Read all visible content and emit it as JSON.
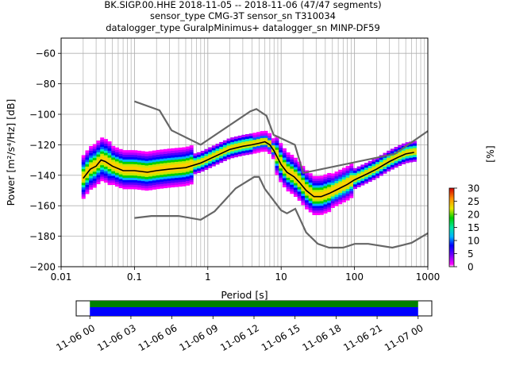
{
  "title_lines": [
    "BK.SIGP.00.HHE   2018-11-05 -- 2018-11-06  (47/47 segments)",
    "sensor_type CMG-3T sensor_sn T310034",
    "datalogger_type GuralpMinimus+ datalogger_sn MINP-DF59"
  ],
  "chart_data": [
    {
      "type": "heatmap",
      "title": "BK.SIGP.00.HHE   2018-11-05 -- 2018-11-06  (47/47 segments)",
      "xlabel": "Period [s]",
      "ylabel": "Power [m²/s⁴/Hz] [dB]",
      "xscale": "log",
      "xlim": [
        0.01,
        1000
      ],
      "ylim": [
        -200,
        -50
      ],
      "xticks": [
        0.01,
        0.1,
        1,
        10,
        100,
        1000
      ],
      "xtick_labels": [
        "0.01",
        "0.1",
        "1",
        "10",
        "100",
        "1000"
      ],
      "yticks": [
        -60,
        -80,
        -100,
        -120,
        -140,
        -160,
        -180,
        -200
      ],
      "ytick_labels": [
        "−60",
        "−80",
        "−100",
        "−120",
        "−140",
        "−160",
        "−180",
        "−200"
      ],
      "grid": true,
      "colorbar": {
        "label": "[%]",
        "range": [
          0,
          30
        ],
        "ticks": [
          0,
          5,
          10,
          15,
          20,
          25,
          30
        ],
        "tick_labels": [
          "0",
          "5",
          "10",
          "15",
          "20",
          "25",
          "30"
        ],
        "colormap": "pqlx"
      },
      "series": [
        {
          "role": "mode",
          "color": "#000000",
          "points": [
            [
              0.02,
              -142
            ],
            [
              0.025,
              -136
            ],
            [
              0.03,
              -134
            ],
            [
              0.035,
              -130
            ],
            [
              0.04,
              -131
            ],
            [
              0.05,
              -134
            ],
            [
              0.07,
              -137
            ],
            [
              0.1,
              -137
            ],
            [
              0.15,
              -138
            ],
            [
              0.2,
              -137
            ],
            [
              0.3,
              -136
            ],
            [
              0.5,
              -135
            ],
            [
              0.8,
              -132
            ],
            [
              1.2,
              -128
            ],
            [
              2,
              -123
            ],
            [
              3,
              -121
            ],
            [
              4,
              -120
            ],
            [
              5,
              -119
            ],
            [
              6,
              -118
            ],
            [
              7,
              -120
            ],
            [
              8,
              -124
            ],
            [
              10,
              -133
            ],
            [
              12,
              -138
            ],
            [
              15,
              -141
            ],
            [
              18,
              -145
            ],
            [
              22,
              -150
            ],
            [
              28,
              -154
            ],
            [
              35,
              -154
            ],
            [
              45,
              -152
            ],
            [
              60,
              -149
            ],
            [
              80,
              -146
            ],
            [
              100,
              -143
            ],
            [
              150,
              -139
            ],
            [
              200,
              -136
            ],
            [
              300,
              -131
            ],
            [
              400,
              -128
            ],
            [
              500,
              -126
            ],
            [
              650,
              -125
            ]
          ]
        },
        {
          "role": "new_high_noise_model",
          "color": "#666666",
          "points": [
            [
              0.1,
              -91.5
            ],
            [
              0.22,
              -97.4
            ],
            [
              0.32,
              -110.5
            ],
            [
              0.8,
              -120
            ],
            [
              3.8,
              -98
            ],
            [
              4.6,
              -96.5
            ],
            [
              6.3,
              -101
            ],
            [
              7.9,
              -113.5
            ],
            [
              15.4,
              -120
            ],
            [
              20,
              -138.5
            ],
            [
              354.8,
              -126
            ],
            [
              1000,
              -111
            ]
          ]
        },
        {
          "role": "new_low_noise_model",
          "color": "#666666",
          "points": [
            [
              0.1,
              -168
            ],
            [
              0.17,
              -166.7
            ],
            [
              0.4,
              -166.7
            ],
            [
              0.8,
              -169.2
            ],
            [
              1.24,
              -163.7
            ],
            [
              2.4,
              -148.6
            ],
            [
              4.3,
              -141.1
            ],
            [
              5,
              -141.1
            ],
            [
              6,
              -149
            ],
            [
              10,
              -163
            ],
            [
              12,
              -165
            ],
            [
              15.6,
              -162
            ],
            [
              21.9,
              -177.5
            ],
            [
              31.6,
              -185
            ],
            [
              45,
              -187.5
            ],
            [
              70,
              -187.5
            ],
            [
              101,
              -185
            ],
            [
              154,
              -185
            ],
            [
              328,
              -187.5
            ],
            [
              600,
              -184.4
            ],
            [
              1000,
              -178
            ]
          ]
        }
      ]
    },
    {
      "type": "bar",
      "role": "data_coverage",
      "xlabel": "",
      "xlim": [
        "11-05 23:00",
        "11-07 01:00"
      ],
      "xtick_labels": [
        "11-06 00",
        "11-06 03",
        "11-06 06",
        "11-06 09",
        "11-06 12",
        "11-06 15",
        "11-06 18",
        "11-06 21",
        "11-07 00"
      ],
      "series": [
        {
          "role": "used",
          "color": "#008000",
          "start": "11-06 00",
          "end": "11-07 00"
        },
        {
          "role": "available",
          "color": "#0000ff",
          "start": "11-06 00",
          "end": "11-07 00"
        }
      ]
    }
  ]
}
